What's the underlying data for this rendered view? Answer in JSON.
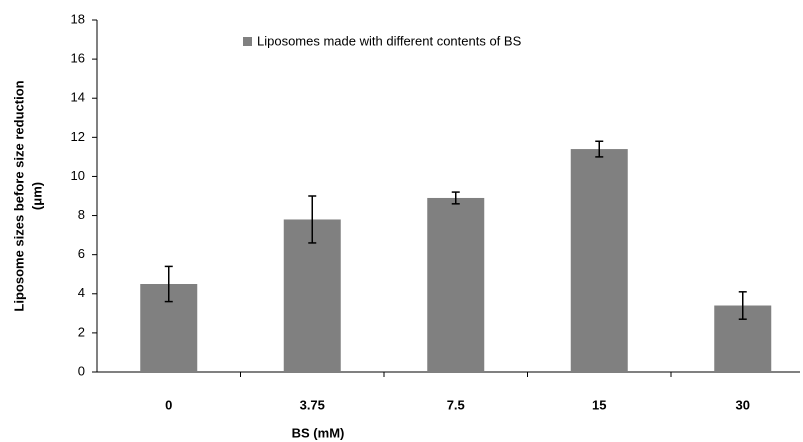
{
  "chart_data": {
    "type": "bar",
    "xlabel": "BS (mM)",
    "ylabel": [
      "Liposome sizes before size reduction",
      "(μm)"
    ],
    "categories": [
      "0",
      "3.75",
      "7.5",
      "15",
      "30"
    ],
    "series": [
      {
        "name": "Liposomes made with different contents of BS",
        "color": "#808080",
        "values": [
          4.5,
          7.8,
          8.9,
          11.4,
          3.4
        ],
        "errors": [
          0.9,
          1.2,
          0.3,
          0.4,
          0.7
        ]
      }
    ],
    "ylim": [
      0,
      18
    ],
    "yticks": [
      0,
      2,
      4,
      6,
      8,
      10,
      12,
      14,
      16,
      18
    ],
    "grid": false,
    "legend": "top"
  }
}
